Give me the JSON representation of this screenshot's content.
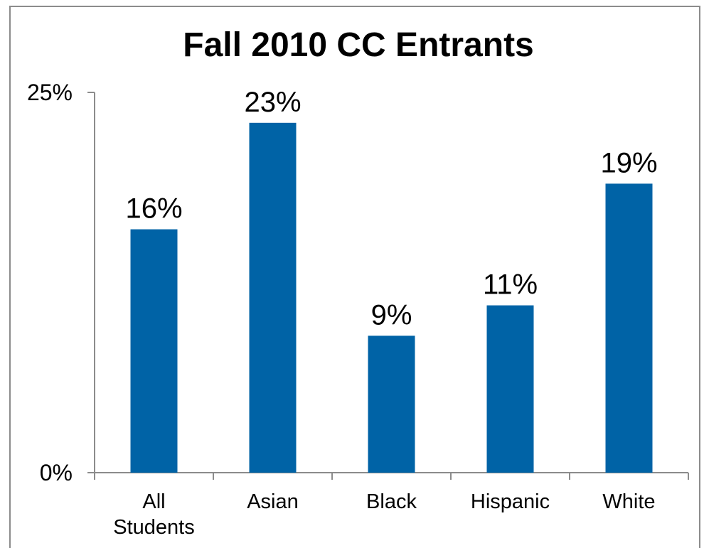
{
  "chart_data": {
    "type": "bar",
    "title": "Fall 2010 CC Entrants",
    "categories": [
      "All Students",
      "Asian",
      "Black",
      "Hispanic",
      "White"
    ],
    "category_lines": [
      [
        "All",
        "Students"
      ],
      [
        "Asian"
      ],
      [
        "Black"
      ],
      [
        "Hispanic"
      ],
      [
        "White"
      ]
    ],
    "values": [
      16,
      23,
      9,
      11,
      19
    ],
    "data_labels": [
      "16%",
      "23%",
      "9%",
      "11%",
      "19%"
    ],
    "ylim": [
      0,
      25
    ],
    "ytick_labels": [
      "0%",
      "25%"
    ],
    "xlabel": "",
    "ylabel": "",
    "grid": false,
    "legend": "none",
    "bar_color": "#0063A6"
  }
}
